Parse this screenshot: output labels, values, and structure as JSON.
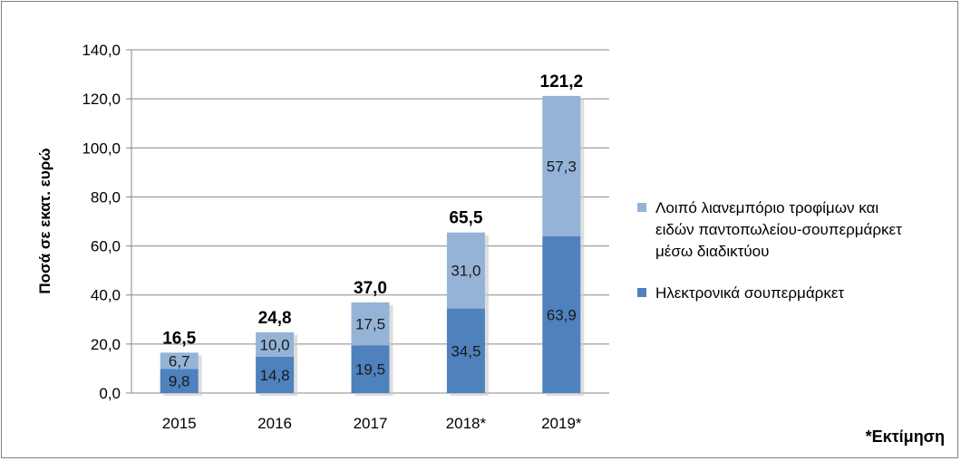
{
  "chart_data": {
    "type": "bar",
    "stacked": true,
    "categories": [
      "2015",
      "2016",
      "2017",
      "2018*",
      "2019*"
    ],
    "series": [
      {
        "name": "Ηλεκτρονικά σουπερμάρκετ",
        "values": [
          "9,8",
          "14,8",
          "19,5",
          "34,5",
          "63,9"
        ],
        "color": "#4f81bd"
      },
      {
        "name_lines": [
          "Λοιπό λιανεμπόριο τροφίμων και",
          "ειδών παντοπωλείου-σουπερμάρκετ",
          "μέσω διαδικτύου"
        ],
        "values": [
          "6,7",
          "10,0",
          "17,5",
          "31,0",
          "57,3"
        ],
        "color": "#95b3d7"
      }
    ],
    "totals": [
      "16,5",
      "24,8",
      "37,0",
      "65,5",
      "121,2"
    ],
    "ylabel": "Ποσά σε εκατ. ευρώ",
    "ylim": [
      0,
      140
    ],
    "yticks": [
      "0,0",
      "20,0",
      "40,0",
      "60,0",
      "80,0",
      "100,0",
      "120,0",
      "140,0"
    ],
    "grid": true,
    "legend_position": "right",
    "footnote": "*Εκτίμηση"
  }
}
